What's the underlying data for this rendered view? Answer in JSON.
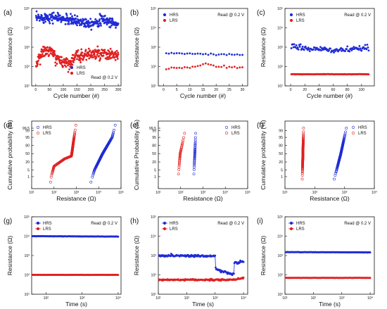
{
  "colors": {
    "hrs": "#1f2bd6",
    "lrs": "#e02020",
    "axis": "#111111"
  },
  "chart_data": [
    {
      "type": "scatter",
      "panel": "(a)",
      "xlabel": "Cycle number (#)",
      "ylabel": "Resistance (Ω)",
      "xscale": "linear",
      "xlim": [
        -15,
        310
      ],
      "yscale": "log",
      "ylim": [
        10,
        100000
      ],
      "xticks": [
        0,
        50,
        100,
        150,
        200,
        250,
        300
      ],
      "xtick_labels": [
        "0",
        "50",
        "100",
        "150",
        "200",
        "250",
        "300"
      ],
      "yticks": [
        10,
        100,
        1000,
        10000,
        100000
      ],
      "ytick_labels": [
        "10¹",
        "10²",
        "10³",
        "10⁴",
        "10⁵"
      ],
      "legend": [
        "HRS",
        "LRS"
      ],
      "legend_position": "bottom-right",
      "note": "Read @ 0.2 V",
      "note_position": "bottom-right",
      "series": [
        {
          "name": "HRS",
          "marker": "filled",
          "gen": {
            "n": 300,
            "x0": 1,
            "x1": 300,
            "y": [
              [
                1,
                30000
              ],
              [
                50,
                38000
              ],
              [
                100,
                28000
              ],
              [
                150,
                22000
              ],
              [
                200,
                18000
              ],
              [
                250,
                26000
              ],
              [
                300,
                14000
              ]
            ],
            "jitter": 0.13
          }
        },
        {
          "name": "LRS",
          "marker": "filled",
          "gen": {
            "n": 300,
            "x0": 1,
            "x1": 300,
            "y": [
              [
                1,
                120
              ],
              [
                20,
                500
              ],
              [
                50,
                700
              ],
              [
                80,
                220
              ],
              [
                120,
                150
              ],
              [
                150,
                350
              ],
              [
                200,
                450
              ],
              [
                250,
                400
              ],
              [
                300,
                380
              ]
            ],
            "jitter": 0.15
          }
        }
      ]
    },
    {
      "type": "scatter",
      "panel": "(b)",
      "xlabel": "Cycle number (#)",
      "ylabel": "Resistance (Ω)",
      "xscale": "linear",
      "xlim": [
        -2,
        32
      ],
      "yscale": "log",
      "ylim": [
        10,
        100000
      ],
      "xticks": [
        0,
        5,
        10,
        15,
        20,
        25,
        30
      ],
      "xtick_labels": [
        "0",
        "5",
        "10",
        "15",
        "20",
        "25",
        "30"
      ],
      "yticks": [
        10,
        100,
        1000,
        10000,
        100000
      ],
      "ytick_labels": [
        "10¹",
        "10²",
        "10³",
        "10⁴",
        "10⁵"
      ],
      "legend": [
        "HRS",
        "LRS"
      ],
      "legend_position": "top-left",
      "note": "Read @ 0.2 V",
      "note_position": "top-right",
      "series": [
        {
          "name": "HRS",
          "marker": "filled",
          "gen": {
            "n": 30,
            "x0": 1,
            "x1": 30,
            "y": [
              [
                1,
                480
              ],
              [
                10,
                460
              ],
              [
                20,
                410
              ],
              [
                30,
                400
              ]
            ],
            "jitter": 0.02
          }
        },
        {
          "name": "LRS",
          "marker": "filled",
          "gen": {
            "n": 30,
            "x0": 1,
            "x1": 30,
            "y": [
              [
                1,
                80
              ],
              [
                12,
                95
              ],
              [
                16,
                150
              ],
              [
                20,
                110
              ],
              [
                30,
                80
              ]
            ],
            "jitter": 0.03
          }
        }
      ]
    },
    {
      "type": "scatter",
      "panel": "(c)",
      "xlabel": "Cycle number (#)",
      "ylabel": "Resistance (Ω)",
      "xscale": "linear",
      "xlim": [
        -8,
        118
      ],
      "yscale": "log",
      "ylim": [
        10,
        100000
      ],
      "xticks": [
        0,
        20,
        40,
        60,
        80,
        100
      ],
      "xtick_labels": [
        "0",
        "20",
        "40",
        "60",
        "80",
        "100"
      ],
      "yticks": [
        10,
        100,
        1000,
        10000,
        100000
      ],
      "ytick_labels": [
        "10¹",
        "10²",
        "10³",
        "10⁴",
        "10⁵"
      ],
      "legend": [
        "HRS",
        "LRS"
      ],
      "legend_position": "top-left",
      "note": "Read @ 0.2 V",
      "note_position": "top-right",
      "series": [
        {
          "name": "HRS",
          "marker": "filled",
          "gen": {
            "n": 110,
            "x0": 1,
            "x1": 110,
            "y": [
              [
                1,
                1100
              ],
              [
                30,
                800
              ],
              [
                60,
                700
              ],
              [
                90,
                750
              ],
              [
                110,
                950
              ]
            ],
            "jitter": 0.07
          }
        },
        {
          "name": "LRS",
          "marker": "filled",
          "gen": {
            "n": 110,
            "x0": 1,
            "x1": 110,
            "y": [
              [
                1,
                40
              ],
              [
                110,
                40
              ]
            ],
            "jitter": 0.005
          }
        }
      ]
    },
    {
      "type": "cdf",
      "panel": "(d)",
      "xlabel": "Resistance (Ω)",
      "ylabel": "Cumulative probability (%)",
      "xscale": "log",
      "xlim": [
        10,
        100000
      ],
      "yscale": "probit",
      "ylim": [
        0.02,
        99.95
      ],
      "xticks": [
        10,
        100,
        1000,
        10000,
        100000
      ],
      "xtick_labels": [
        "10¹",
        "10²",
        "10³",
        "10⁴",
        "10⁵"
      ],
      "yticks": [
        1,
        5,
        20,
        50,
        80,
        95,
        99,
        99.5
      ],
      "ytick_labels": [
        "1",
        "5",
        "20",
        "50",
        "80",
        "95",
        "99",
        "99.5"
      ],
      "legend": [
        "HRS",
        "LRS"
      ],
      "legend_position": "top-left",
      "series": [
        {
          "name": "HRS",
          "marker": "open",
          "gen": {
            "n": 150,
            "p0": 0.2,
            "p1": 99.8,
            "x": [
              [
                0.2,
                4500
              ],
              [
                5,
                6500
              ],
              [
                50,
                15000
              ],
              [
                95,
                40000
              ],
              [
                99.8,
                55000
              ]
            ]
          }
        },
        {
          "name": "LRS",
          "marker": "open",
          "gen": {
            "n": 150,
            "p0": 0.2,
            "p1": 99.8,
            "x": [
              [
                0.2,
                70
              ],
              [
                1,
                75
              ],
              [
                10,
                100
              ],
              [
                30,
                300
              ],
              [
                40,
                600
              ],
              [
                60,
                650
              ],
              [
                90,
                750
              ],
              [
                99.8,
                950
              ]
            ]
          }
        }
      ]
    },
    {
      "type": "cdf",
      "panel": "(e)",
      "xlabel": "Resistance (Ω)",
      "ylabel": "Cumulative Probability (%)",
      "xscale": "log",
      "xlim": [
        10,
        100000
      ],
      "yscale": "probit",
      "ylim": [
        0.02,
        99.95
      ],
      "xticks": [
        10,
        100,
        1000,
        10000,
        100000
      ],
      "xtick_labels": [
        "10¹",
        "10²",
        "10³",
        "10⁴",
        "10⁵"
      ],
      "yticks": [
        1,
        5,
        20,
        50,
        80,
        95,
        99,
        99.5
      ],
      "ytick_labels": [
        "1",
        "5",
        "20",
        "50",
        "80",
        "95",
        "99",
        "99.5"
      ],
      "legend": [
        "HRS",
        "LRS"
      ],
      "legend_position": "top-right",
      "series": [
        {
          "name": "HRS",
          "marker": "open",
          "gen": {
            "n": 30,
            "p0": 2,
            "p1": 98,
            "x": [
              [
                2,
                390
              ],
              [
                50,
                430
              ],
              [
                98,
                470
              ]
            ]
          }
        },
        {
          "name": "LRS",
          "marker": "open",
          "gen": {
            "n": 30,
            "p0": 2,
            "p1": 98,
            "x": [
              [
                2,
                80
              ],
              [
                50,
                95
              ],
              [
                98,
                150
              ]
            ]
          }
        }
      ]
    },
    {
      "type": "cdf",
      "panel": "(f)",
      "xlabel": "Resistance (Ω)",
      "ylabel": "Cumulative probability (%)",
      "xscale": "log",
      "xlim": [
        10,
        10000
      ],
      "yscale": "probit",
      "ylim": [
        0.02,
        99.95
      ],
      "xticks": [
        10,
        100,
        1000,
        10000
      ],
      "xtick_labels": [
        "10¹",
        "10²",
        "10³",
        "10⁴"
      ],
      "yticks": [
        1,
        5,
        20,
        50,
        80,
        95,
        99
      ],
      "ytick_labels": [
        "1",
        "5",
        "20",
        "50",
        "80",
        "95",
        "99"
      ],
      "legend": [
        "HRS",
        "LRS"
      ],
      "legend_position": "top-right",
      "series": [
        {
          "name": "HRS",
          "marker": "open",
          "gen": {
            "n": 110,
            "p0": 0.5,
            "p1": 99.5,
            "x": [
              [
                0.5,
                450
              ],
              [
                50,
                750
              ],
              [
                99.5,
                1150
              ]
            ]
          }
        },
        {
          "name": "LRS",
          "marker": "open",
          "gen": {
            "n": 110,
            "p0": 0.5,
            "p1": 99.5,
            "x": [
              [
                0.5,
                38
              ],
              [
                50,
                40
              ],
              [
                99.5,
                42
              ]
            ]
          }
        }
      ]
    },
    {
      "type": "line",
      "panel": "(g)",
      "xlabel": "Time (s)",
      "ylabel": "Resistance (Ω)",
      "xscale": "log",
      "xlim": [
        40,
        12000
      ],
      "yscale": "log",
      "ylim": [
        10,
        100000
      ],
      "xticks": [
        100,
        1000,
        10000
      ],
      "xtick_labels": [
        "10²",
        "10³",
        "10⁴"
      ],
      "yticks": [
        10,
        100,
        1000,
        10000,
        100000
      ],
      "ytick_labels": [
        "10¹",
        "10²",
        "10³",
        "10⁴",
        "10⁵"
      ],
      "legend": [
        "HRS",
        "LRS"
      ],
      "legend_position": "top-left",
      "note": "Read @ 0.2 V",
      "note_position": "top-right",
      "series": [
        {
          "name": "HRS",
          "marker": "filled-line",
          "gen": {
            "n": 150,
            "x0": 40,
            "x1": 10000,
            "y": [
              [
                40,
                10000
              ],
              [
                10000,
                9500
              ]
            ],
            "jitter": 0.004
          }
        },
        {
          "name": "LRS",
          "marker": "filled-line",
          "gen": {
            "n": 150,
            "x0": 40,
            "x1": 10000,
            "y": [
              [
                40,
                100
              ],
              [
                10000,
                100
              ]
            ],
            "jitter": 0.003
          }
        }
      ]
    },
    {
      "type": "line",
      "panel": "(h)",
      "xlabel": "Time (s)",
      "ylabel": "Resistance (Ω)",
      "xscale": "log",
      "xlim": [
        10,
        14000
      ],
      "yscale": "log",
      "ylim": [
        10,
        100000
      ],
      "xticks": [
        10,
        100,
        1000,
        10000
      ],
      "xtick_labels": [
        "10¹",
        "10²",
        "10³",
        "10⁴"
      ],
      "yticks": [
        10,
        100,
        1000,
        10000,
        100000
      ],
      "ytick_labels": [
        "10¹",
        "10²",
        "10³",
        "10⁴",
        "10⁵"
      ],
      "legend": [
        "HRS",
        "LRS"
      ],
      "legend_position": "top-left",
      "note": "Read @ 0.2 V",
      "note_position": "top-right",
      "series": [
        {
          "name": "HRS",
          "marker": "filled-line",
          "gen": {
            "n": 160,
            "x0": 10,
            "x1": 10000,
            "y": [
              [
                10,
                1000
              ],
              [
                900,
                950
              ],
              [
                1000,
                950
              ],
              [
                1050,
                200
              ],
              [
                2000,
                140
              ],
              [
                4000,
                110
              ],
              [
                4600,
                110
              ],
              [
                4800,
                500
              ],
              [
                6000,
                400
              ],
              [
                10000,
                500
              ]
            ],
            "jitter": 0.03
          }
        },
        {
          "name": "LRS",
          "marker": "filled-line",
          "gen": {
            "n": 160,
            "x0": 10,
            "x1": 10000,
            "y": [
              [
                10,
                55
              ],
              [
                4000,
                55
              ],
              [
                10000,
                70
              ]
            ],
            "jitter": 0.02
          }
        }
      ]
    },
    {
      "type": "line",
      "panel": "(i)",
      "xlabel": "Time (s)",
      "ylabel": "Resistance (Ω)",
      "xscale": "log",
      "xlim": [
        10,
        14000
      ],
      "yscale": "log",
      "ylim": [
        10,
        100000
      ],
      "xticks": [
        10,
        100,
        1000,
        10000
      ],
      "xtick_labels": [
        "10¹",
        "10²",
        "10³",
        "10⁴"
      ],
      "yticks": [
        10,
        100,
        1000,
        10000,
        100000
      ],
      "ytick_labels": [
        "10¹",
        "10²",
        "10³",
        "10⁴",
        "10⁵"
      ],
      "legend": [
        "HRS",
        "LRS"
      ],
      "legend_position": "top-left",
      "note": "Read @ 0.2 V",
      "note_position": "top-right",
      "series": [
        {
          "name": "HRS",
          "marker": "filled-line",
          "gen": {
            "n": 150,
            "x0": 10,
            "x1": 10000,
            "y": [
              [
                10,
                1500
              ],
              [
                10000,
                1450
              ]
            ],
            "jitter": 0.004
          }
        },
        {
          "name": "LRS",
          "marker": "filled-line",
          "gen": {
            "n": 150,
            "x0": 10,
            "x1": 10000,
            "y": [
              [
                10,
                70
              ],
              [
                10000,
                70
              ]
            ],
            "jitter": 0.003
          }
        }
      ]
    }
  ]
}
